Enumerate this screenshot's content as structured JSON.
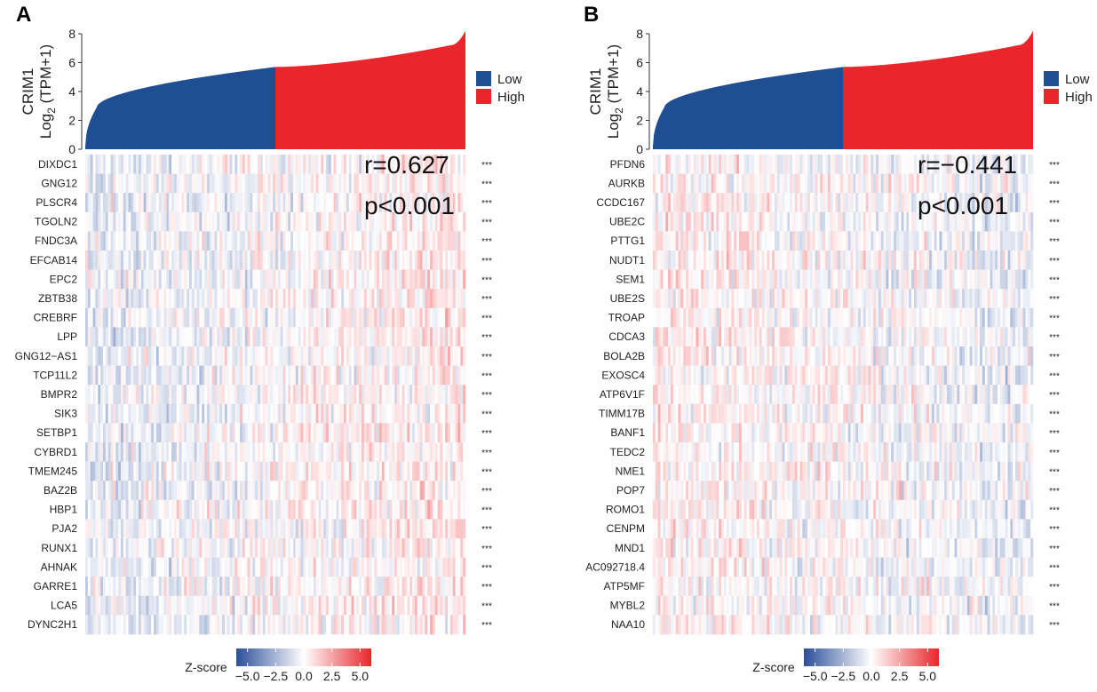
{
  "figure": {
    "colors": {
      "low": "#1f4e93",
      "high": "#e8262b",
      "zneg": "#2c4f9a",
      "zmid": "#ffffff",
      "zpos": "#e8262b",
      "text": "#222222"
    }
  },
  "chart_data": [
    {
      "panel_label": "A",
      "type": "heatmap",
      "top_plot": {
        "type": "area",
        "ylabel_line1": "CRIM1",
        "ylabel_line2": "Log",
        "ylabel_sub": "2",
        "ylabel_line2_rest": " (TPM+1)",
        "ylim": [
          0,
          8
        ],
        "yticks": [
          "0",
          "2",
          "4",
          "6",
          "8"
        ],
        "split_fraction": 0.5,
        "profile": {
          "start": 0.2,
          "knee_x": 0.03,
          "knee_y": 2.9,
          "mid_y": 5.7,
          "end_y": 7.2,
          "peak_y": 8.2
        }
      },
      "legend": [
        {
          "label": "Low",
          "color": "#1f4e93"
        },
        {
          "label": "High",
          "color": "#e8262b"
        }
      ],
      "annotation": {
        "r": "r=0.627",
        "p": "p<0.001"
      },
      "correlation_r": 0.627,
      "genes": [
        "DIXDC1",
        "GNG12",
        "PLSCR4",
        "TGOLN2",
        "FNDC3A",
        "EFCAB14",
        "EPC2",
        "ZBTB38",
        "CREBRF",
        "LPP",
        "GNG12−AS1",
        "TCP11L2",
        "BMPR2",
        "SIK3",
        "SETBP1",
        "CYBRD1",
        "TMEM245",
        "BAZ2B",
        "HBP1",
        "PJA2",
        "RUNX1",
        "AHNAK",
        "GARRE1",
        "LCA5",
        "DYNC2H1"
      ],
      "significance": [
        "***",
        "***",
        "***",
        "***",
        "***",
        "***",
        "***",
        "***",
        "***",
        "***",
        "***",
        "***",
        "***",
        "***",
        "***",
        "***",
        "***",
        "***",
        "***",
        "***",
        "***",
        "***",
        "***",
        "***",
        "***"
      ],
      "colorbar": {
        "title": "Z-score",
        "range": [
          -6,
          6
        ],
        "ticks": [
          -5.0,
          -2.5,
          0.0,
          2.5,
          5.0
        ],
        "tick_labels": [
          "−5.0",
          "−2.5",
          "0.0",
          "2.5",
          "5.0"
        ]
      }
    },
    {
      "panel_label": "B",
      "type": "heatmap",
      "top_plot": {
        "type": "area",
        "ylabel_line1": "CRIM1",
        "ylabel_line2": "Log",
        "ylabel_sub": "2",
        "ylabel_line2_rest": " (TPM+1)",
        "ylim": [
          0,
          8
        ],
        "yticks": [
          "0",
          "2",
          "4",
          "6",
          "8"
        ],
        "split_fraction": 0.5,
        "profile": {
          "start": 0.2,
          "knee_x": 0.03,
          "knee_y": 2.9,
          "mid_y": 5.7,
          "end_y": 7.2,
          "peak_y": 8.2
        }
      },
      "legend": [
        {
          "label": "Low",
          "color": "#1f4e93"
        },
        {
          "label": "High",
          "color": "#e8262b"
        }
      ],
      "annotation": {
        "r": "r=−0.441",
        "p": "p<0.001"
      },
      "correlation_r": -0.441,
      "genes": [
        "PFDN6",
        "AURKB",
        "CCDC167",
        "UBE2C",
        "PTTG1",
        "NUDT1",
        "SEM1",
        "UBE2S",
        "TROAP",
        "CDCA3",
        "BOLA2B",
        "EXOSC4",
        "ATP6V1F",
        "TIMM17B",
        "BANF1",
        "TEDC2",
        "NME1",
        "POP7",
        "ROMO1",
        "CENPM",
        "MND1",
        "AC092718.4",
        "ATP5MF",
        "MYBL2",
        "NAA10"
      ],
      "significance": [
        "***",
        "***",
        "***",
        "***",
        "***",
        "***",
        "***",
        "***",
        "***",
        "***",
        "***",
        "***",
        "***",
        "***",
        "***",
        "***",
        "***",
        "***",
        "***",
        "***",
        "***",
        "***",
        "***",
        "***",
        "***"
      ],
      "colorbar": {
        "title": "Z-score",
        "range": [
          -6,
          6
        ],
        "ticks": [
          -5.0,
          -2.5,
          0.0,
          2.5,
          5.0
        ],
        "tick_labels": [
          "−5.0",
          "−2.5",
          "0.0",
          "2.5",
          "5.0"
        ]
      }
    }
  ]
}
